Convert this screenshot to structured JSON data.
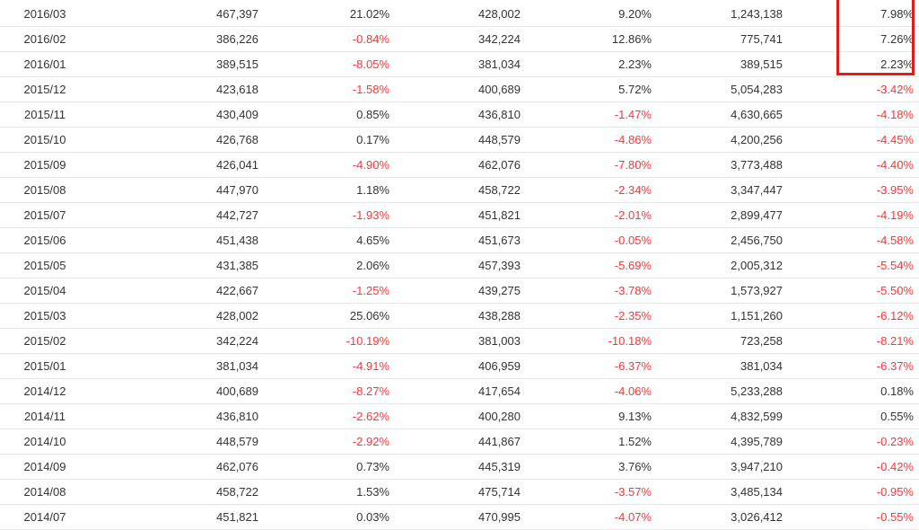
{
  "table": {
    "rows": [
      {
        "month": "2016/03",
        "v1": "467,397",
        "r1": "21.02%",
        "v2": "428,002",
        "r2": "9.20%",
        "cum": "1,243,138",
        "r3": "7.98%"
      },
      {
        "month": "2016/02",
        "v1": "386,226",
        "r1": "-0.84%",
        "v2": "342,224",
        "r2": "12.86%",
        "cum": "775,741",
        "r3": "7.26%"
      },
      {
        "month": "2016/01",
        "v1": "389,515",
        "r1": "-8.05%",
        "v2": "381,034",
        "r2": "2.23%",
        "cum": "389,515",
        "r3": "2.23%"
      },
      {
        "month": "2015/12",
        "v1": "423,618",
        "r1": "-1.58%",
        "v2": "400,689",
        "r2": "5.72%",
        "cum": "5,054,283",
        "r3": "-3.42%"
      },
      {
        "month": "2015/11",
        "v1": "430,409",
        "r1": "0.85%",
        "v2": "436,810",
        "r2": "-1.47%",
        "cum": "4,630,665",
        "r3": "-4.18%"
      },
      {
        "month": "2015/10",
        "v1": "426,768",
        "r1": "0.17%",
        "v2": "448,579",
        "r2": "-4.86%",
        "cum": "4,200,256",
        "r3": "-4.45%"
      },
      {
        "month": "2015/09",
        "v1": "426,041",
        "r1": "-4.90%",
        "v2": "462,076",
        "r2": "-7.80%",
        "cum": "3,773,488",
        "r3": "-4.40%"
      },
      {
        "month": "2015/08",
        "v1": "447,970",
        "r1": "1.18%",
        "v2": "458,722",
        "r2": "-2.34%",
        "cum": "3,347,447",
        "r3": "-3.95%"
      },
      {
        "month": "2015/07",
        "v1": "442,727",
        "r1": "-1.93%",
        "v2": "451,821",
        "r2": "-2.01%",
        "cum": "2,899,477",
        "r3": "-4.19%"
      },
      {
        "month": "2015/06",
        "v1": "451,438",
        "r1": "4.65%",
        "v2": "451,673",
        "r2": "-0.05%",
        "cum": "2,456,750",
        "r3": "-4.58%"
      },
      {
        "month": "2015/05",
        "v1": "431,385",
        "r1": "2.06%",
        "v2": "457,393",
        "r2": "-5.69%",
        "cum": "2,005,312",
        "r3": "-5.54%"
      },
      {
        "month": "2015/04",
        "v1": "422,667",
        "r1": "-1.25%",
        "v2": "439,275",
        "r2": "-3.78%",
        "cum": "1,573,927",
        "r3": "-5.50%"
      },
      {
        "month": "2015/03",
        "v1": "428,002",
        "r1": "25.06%",
        "v2": "438,288",
        "r2": "-2.35%",
        "cum": "1,151,260",
        "r3": "-6.12%"
      },
      {
        "month": "2015/02",
        "v1": "342,224",
        "r1": "-10.19%",
        "v2": "381,003",
        "r2": "-10.18%",
        "cum": "723,258",
        "r3": "-8.21%"
      },
      {
        "month": "2015/01",
        "v1": "381,034",
        "r1": "-4.91%",
        "v2": "406,959",
        "r2": "-6.37%",
        "cum": "381,034",
        "r3": "-6.37%"
      },
      {
        "month": "2014/12",
        "v1": "400,689",
        "r1": "-8.27%",
        "v2": "417,654",
        "r2": "-4.06%",
        "cum": "5,233,288",
        "r3": "0.18%"
      },
      {
        "month": "2014/11",
        "v1": "436,810",
        "r1": "-2.62%",
        "v2": "400,280",
        "r2": "9.13%",
        "cum": "4,832,599",
        "r3": "0.55%"
      },
      {
        "month": "2014/10",
        "v1": "448,579",
        "r1": "-2.92%",
        "v2": "441,867",
        "r2": "1.52%",
        "cum": "4,395,789",
        "r3": "-0.23%"
      },
      {
        "month": "2014/09",
        "v1": "462,076",
        "r1": "0.73%",
        "v2": "445,319",
        "r2": "3.76%",
        "cum": "3,947,210",
        "r3": "-0.42%"
      },
      {
        "month": "2014/08",
        "v1": "458,722",
        "r1": "1.53%",
        "v2": "475,714",
        "r2": "-3.57%",
        "cum": "3,485,134",
        "r3": "-0.95%"
      },
      {
        "month": "2014/07",
        "v1": "451,821",
        "r1": "0.03%",
        "v2": "470,995",
        "r2": "-4.07%",
        "cum": "3,026,412",
        "r3": "-0.55%"
      }
    ]
  },
  "colors": {
    "negative": "#ff3333",
    "positive": "#333333",
    "highlight": "#e31a1a"
  }
}
